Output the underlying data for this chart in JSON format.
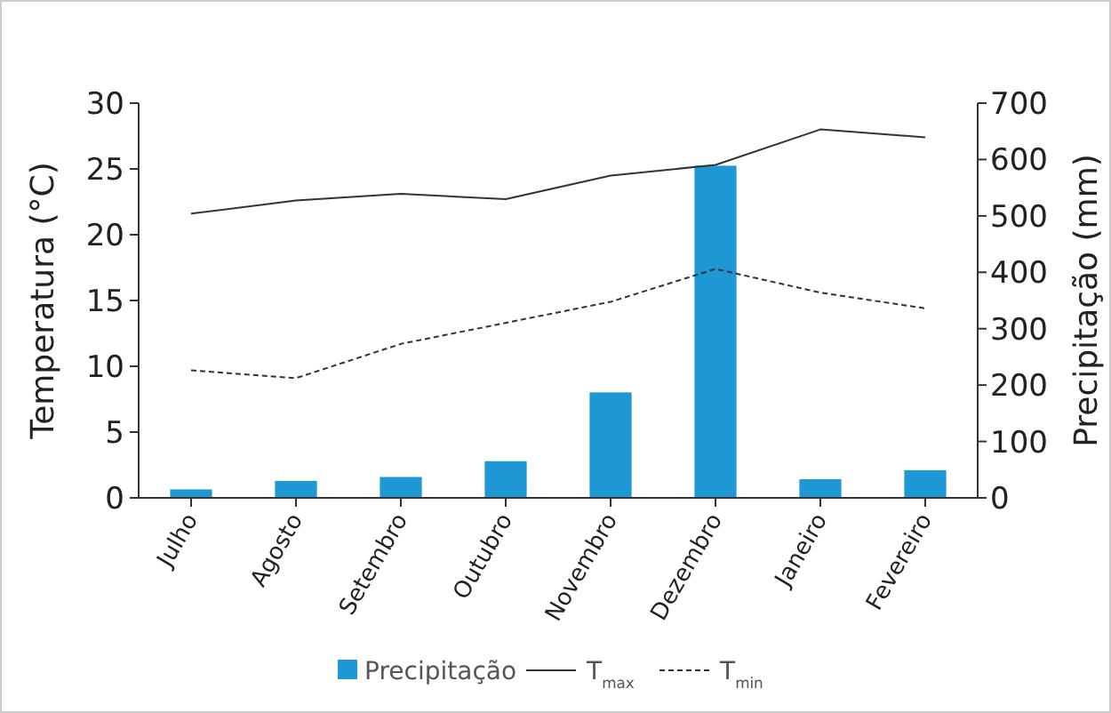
{
  "chart_data": {
    "type": "bar",
    "categories": [
      "Julho",
      "Agosto",
      "Setembro",
      "Outubro",
      "Novembro",
      "Dezembro",
      "Janeiro",
      "Fevereiro"
    ],
    "ylabel": "Temperatura (°C)",
    "y2label": "Precipitação (mm)",
    "series": [
      {
        "name": "Precipitação",
        "axis": "y2",
        "color": "#1e98d4",
        "values": [
          15,
          30,
          37,
          65,
          187,
          589,
          33,
          49
        ]
      },
      {
        "name": "T$_{max}$",
        "type": "line",
        "color": "#333333",
        "line_style": "solid",
        "values": [
          21.6,
          22.6,
          23.1,
          22.7,
          24.5,
          25.3,
          28.0,
          27.4
        ]
      },
      {
        "name": "T$_{min}$",
        "type": "line",
        "color": "#333333",
        "line_style": "dashed",
        "values": [
          9.7,
          9.1,
          11.7,
          13.3,
          14.9,
          17.4,
          15.6,
          14.4
        ]
      }
    ],
    "ylim": [
      0,
      30
    ],
    "yticks": [
      0,
      5,
      10,
      15,
      20,
      25,
      30
    ],
    "y2lim": [
      0,
      700
    ],
    "y2ticks": [
      0,
      100,
      200,
      300,
      400,
      500,
      600,
      700
    ],
    "legend": "bottom",
    "grid": false
  }
}
